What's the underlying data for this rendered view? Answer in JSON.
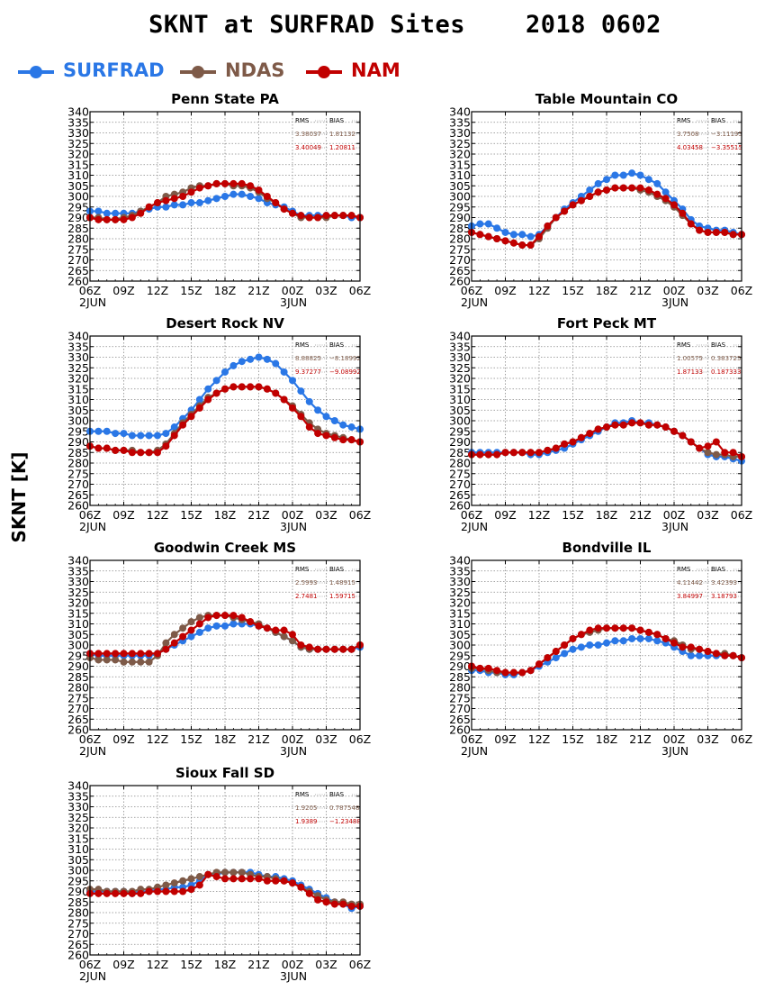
{
  "title": "SKNT at SURFRAD Sites    2018 0602",
  "ylabel": "SKNT [K]",
  "colors": {
    "SURFRAD": "#2a77e6",
    "NDAS": "#7e5a48",
    "NAM": "#c10000"
  },
  "legend": [
    {
      "name": "SURFRAD",
      "color": "#2a77e6"
    },
    {
      "name": "NDAS",
      "color": "#7e5a48"
    },
    {
      "name": "NAM",
      "color": "#c10000"
    }
  ],
  "chart_data": [
    {
      "type": "line",
      "title": "Penn State PA",
      "ylim": [
        260,
        340
      ],
      "yticks_step": 5,
      "grid": true,
      "x_tick_labels": [
        "06Z",
        "09Z",
        "12Z",
        "15Z",
        "18Z",
        "21Z",
        "00Z",
        "03Z",
        "06Z"
      ],
      "x_date_labels": [
        "2JUN",
        "3JUN"
      ],
      "stats": {
        "header": [
          "RMS",
          "BIAS"
        ],
        "NDAS": [
          "3.38037",
          "1.81132"
        ],
        "NAM": [
          "3.40049",
          "1.20811"
        ]
      },
      "series": [
        {
          "name": "SURFRAD",
          "values": [
            293,
            293,
            292,
            292,
            292,
            292,
            293,
            294,
            295,
            295,
            296,
            296,
            297,
            297,
            298,
            299,
            300,
            301,
            301,
            300,
            299,
            297,
            296,
            295,
            293,
            291,
            291,
            291,
            291,
            291,
            291,
            290,
            290
          ]
        },
        {
          "name": "NDAS",
          "values": [
            290,
            290,
            289,
            289,
            290,
            291,
            293,
            295,
            297,
            300,
            301,
            302,
            304,
            305,
            305,
            306,
            306,
            305,
            305,
            304,
            302,
            299,
            297,
            294,
            292,
            290,
            290,
            290,
            290,
            291,
            291,
            291,
            290
          ]
        },
        {
          "name": "NAM",
          "values": [
            290,
            289,
            289,
            289,
            289,
            290,
            292,
            295,
            297,
            298,
            299,
            300,
            302,
            304,
            305,
            306,
            306,
            306,
            306,
            305,
            303,
            300,
            297,
            294,
            292,
            291,
            290,
            290,
            291,
            291,
            291,
            291,
            290
          ]
        }
      ]
    },
    {
      "type": "line",
      "title": "Table Mountain CO",
      "ylim": [
        260,
        340
      ],
      "yticks_step": 5,
      "grid": true,
      "x_tick_labels": [
        "06Z",
        "09Z",
        "12Z",
        "15Z",
        "18Z",
        "21Z",
        "00Z",
        "03Z",
        "06Z"
      ],
      "x_date_labels": [
        "2JUN",
        "3JUN"
      ],
      "stats": {
        "header": [
          "RMS",
          "BIAS"
        ],
        "NDAS": [
          "3.7508",
          "−3.11195"
        ],
        "NAM": [
          "4.03458",
          "−3.35515"
        ]
      },
      "series": [
        {
          "name": "SURFRAD",
          "values": [
            286,
            287,
            287,
            285,
            283,
            282,
            282,
            281,
            282,
            286,
            290,
            294,
            297,
            300,
            303,
            306,
            308,
            310,
            310,
            311,
            310,
            308,
            306,
            302,
            298,
            294,
            289,
            286,
            285,
            284,
            284,
            283,
            282
          ]
        },
        {
          "name": "NDAS",
          "values": [
            283,
            282,
            281,
            280,
            279,
            278,
            277,
            277,
            280,
            285,
            290,
            293,
            296,
            298,
            300,
            302,
            303,
            304,
            304,
            304,
            303,
            302,
            300,
            298,
            295,
            291,
            287,
            284,
            283,
            283,
            283,
            282,
            282
          ]
        },
        {
          "name": "NAM",
          "values": [
            283,
            282,
            281,
            280,
            279,
            278,
            277,
            277,
            281,
            286,
            290,
            293,
            296,
            298,
            300,
            302,
            303,
            304,
            304,
            304,
            304,
            303,
            301,
            299,
            296,
            292,
            287,
            284,
            283,
            283,
            283,
            282,
            282
          ]
        }
      ]
    },
    {
      "type": "line",
      "title": "Desert Rock NV",
      "ylim": [
        260,
        340
      ],
      "yticks_step": 5,
      "grid": true,
      "x_tick_labels": [
        "06Z",
        "09Z",
        "12Z",
        "15Z",
        "18Z",
        "21Z",
        "00Z",
        "03Z",
        "06Z"
      ],
      "x_date_labels": [
        "2JUN",
        "3JUN"
      ],
      "stats": {
        "header": [
          "RMS",
          "BIAS"
        ],
        "NDAS": [
          "8.88825",
          "−8.18992"
        ],
        "NAM": [
          "9.37277",
          "−9.08992"
        ]
      },
      "series": [
        {
          "name": "SURFRAD",
          "values": [
            295,
            295,
            295,
            294,
            294,
            293,
            293,
            293,
            293,
            294,
            297,
            301,
            305,
            310,
            315,
            319,
            323,
            326,
            328,
            329,
            330,
            329,
            327,
            323,
            319,
            314,
            309,
            305,
            302,
            300,
            298,
            297,
            296
          ]
        },
        {
          "name": "NDAS",
          "values": [
            288,
            287,
            287,
            286,
            286,
            286,
            285,
            285,
            286,
            289,
            294,
            299,
            303,
            307,
            311,
            313,
            315,
            316,
            316,
            316,
            316,
            315,
            313,
            310,
            307,
            303,
            299,
            296,
            294,
            293,
            292,
            291,
            290
          ]
        },
        {
          "name": "NAM",
          "values": [
            288,
            287,
            287,
            286,
            286,
            285,
            285,
            285,
            285,
            288,
            293,
            298,
            302,
            306,
            310,
            313,
            315,
            316,
            316,
            316,
            316,
            315,
            313,
            310,
            306,
            302,
            297,
            294,
            293,
            292,
            291,
            291,
            290
          ]
        }
      ]
    },
    {
      "type": "line",
      "title": "Fort Peck MT",
      "ylim": [
        260,
        340
      ],
      "yticks_step": 5,
      "grid": true,
      "x_tick_labels": [
        "06Z",
        "09Z",
        "12Z",
        "15Z",
        "18Z",
        "21Z",
        "00Z",
        "03Z",
        "06Z"
      ],
      "x_date_labels": [
        "2JUN",
        "3JUN"
      ],
      "stats": {
        "header": [
          "RMS",
          "BIAS"
        ],
        "NDAS": [
          "1.00575",
          "0.383725"
        ],
        "NAM": [
          "1.87133",
          "0.187333"
        ]
      },
      "series": [
        {
          "name": "SURFRAD",
          "values": [
            285,
            285,
            285,
            285,
            285,
            285,
            285,
            284,
            284,
            285,
            286,
            287,
            289,
            291,
            293,
            295,
            297,
            299,
            299,
            300,
            299,
            299,
            298,
            297,
            295,
            293,
            290,
            287,
            284,
            283,
            283,
            282,
            281
          ]
        },
        {
          "name": "NDAS",
          "values": [
            284,
            284,
            284,
            284,
            285,
            285,
            285,
            285,
            285,
            286,
            287,
            289,
            290,
            292,
            294,
            296,
            297,
            298,
            298,
            299,
            299,
            298,
            298,
            297,
            295,
            293,
            290,
            287,
            285,
            284,
            284,
            283,
            283
          ]
        },
        {
          "name": "NAM",
          "values": [
            284,
            284,
            284,
            284,
            285,
            285,
            285,
            285,
            285,
            286,
            287,
            289,
            290,
            292,
            294,
            296,
            297,
            298,
            298,
            299,
            299,
            298,
            298,
            297,
            295,
            293,
            290,
            287,
            288,
            290,
            285,
            285,
            283
          ]
        }
      ]
    },
    {
      "type": "line",
      "title": "Goodwin Creek MS",
      "ylim": [
        260,
        340
      ],
      "yticks_step": 5,
      "grid": true,
      "x_tick_labels": [
        "06Z",
        "09Z",
        "12Z",
        "15Z",
        "18Z",
        "21Z",
        "00Z",
        "03Z",
        "06Z"
      ],
      "x_date_labels": [
        "2JUN",
        "3JUN"
      ],
      "stats": {
        "header": [
          "RMS",
          "BIAS"
        ],
        "NDAS": [
          "2.5993",
          "1.48915"
        ],
        "NAM": [
          "2.7481",
          "1.59715"
        ]
      },
      "series": [
        {
          "name": "SURFRAD",
          "values": [
            296,
            295,
            295,
            295,
            295,
            295,
            295,
            295,
            296,
            298,
            300,
            302,
            304,
            306,
            308,
            309,
            309,
            310,
            310,
            310,
            309,
            308,
            306,
            304,
            302,
            299,
            298,
            298,
            298,
            298,
            298,
            298,
            299
          ]
        },
        {
          "name": "NDAS",
          "values": [
            294,
            293,
            293,
            293,
            292,
            292,
            292,
            292,
            295,
            301,
            305,
            308,
            311,
            313,
            314,
            314,
            314,
            313,
            312,
            311,
            310,
            308,
            306,
            304,
            302,
            299,
            298,
            298,
            298,
            298,
            298,
            298,
            300
          ]
        },
        {
          "name": "NAM",
          "values": [
            296,
            296,
            296,
            296,
            296,
            296,
            296,
            296,
            296,
            298,
            301,
            304,
            307,
            310,
            313,
            314,
            314,
            314,
            313,
            311,
            309,
            308,
            307,
            307,
            305,
            300,
            299,
            298,
            298,
            298,
            298,
            298,
            300
          ]
        }
      ]
    },
    {
      "type": "line",
      "title": "Bondville IL",
      "ylim": [
        260,
        340
      ],
      "yticks_step": 5,
      "grid": true,
      "x_tick_labels": [
        "06Z",
        "09Z",
        "12Z",
        "15Z",
        "18Z",
        "21Z",
        "00Z",
        "03Z",
        "06Z"
      ],
      "x_date_labels": [
        "2JUN",
        "3JUN"
      ],
      "stats": {
        "header": [
          "RMS",
          "BIAS"
        ],
        "NDAS": [
          "4.11442",
          "3.42393"
        ],
        "NAM": [
          "3.84997",
          "3.18793"
        ]
      },
      "series": [
        {
          "name": "SURFRAD",
          "values": [
            288,
            288,
            287,
            287,
            286,
            286,
            287,
            288,
            290,
            292,
            294,
            296,
            298,
            299,
            300,
            300,
            301,
            302,
            302,
            303,
            303,
            303,
            302,
            301,
            299,
            297,
            295,
            295,
            295,
            295,
            295,
            295,
            294
          ]
        },
        {
          "name": "NDAS",
          "values": [
            289,
            289,
            288,
            287,
            287,
            287,
            287,
            288,
            291,
            294,
            297,
            300,
            303,
            305,
            306,
            307,
            308,
            308,
            308,
            308,
            307,
            306,
            305,
            303,
            302,
            300,
            298,
            298,
            297,
            296,
            296,
            295,
            294
          ]
        },
        {
          "name": "NAM",
          "values": [
            290,
            289,
            289,
            288,
            287,
            287,
            287,
            288,
            291,
            294,
            297,
            300,
            303,
            305,
            307,
            308,
            308,
            308,
            308,
            308,
            307,
            306,
            305,
            303,
            301,
            299,
            299,
            298,
            297,
            296,
            295,
            295,
            294
          ]
        }
      ]
    },
    {
      "type": "line",
      "title": "Sioux Fall SD",
      "ylim": [
        260,
        340
      ],
      "yticks_step": 5,
      "grid": true,
      "x_tick_labels": [
        "06Z",
        "09Z",
        "12Z",
        "15Z",
        "18Z",
        "21Z",
        "00Z",
        "03Z",
        "06Z"
      ],
      "x_date_labels": [
        "2JUN",
        "3JUN"
      ],
      "stats": {
        "header": [
          "RMS",
          "BIAS"
        ],
        "NDAS": [
          "1.9205",
          "0.787548"
        ],
        "NAM": [
          "1.9389",
          "−1.23488"
        ]
      },
      "series": [
        {
          "name": "SURFRAD",
          "values": [
            290,
            290,
            290,
            290,
            290,
            289,
            290,
            290,
            291,
            291,
            292,
            292,
            293,
            295,
            298,
            298,
            299,
            299,
            299,
            299,
            298,
            297,
            297,
            296,
            295,
            293,
            291,
            289,
            287,
            285,
            284,
            282,
            283
          ]
        },
        {
          "name": "NDAS",
          "values": [
            291,
            291,
            290,
            290,
            290,
            290,
            291,
            291,
            292,
            293,
            294,
            295,
            296,
            297,
            298,
            299,
            299,
            299,
            299,
            298,
            297,
            297,
            296,
            295,
            294,
            292,
            290,
            288,
            286,
            285,
            285,
            284,
            284
          ]
        },
        {
          "name": "NAM",
          "values": [
            289,
            289,
            289,
            289,
            289,
            289,
            289,
            290,
            290,
            290,
            290,
            290,
            291,
            293,
            298,
            297,
            296,
            296,
            296,
            296,
            296,
            295,
            295,
            295,
            294,
            292,
            289,
            286,
            285,
            284,
            284,
            283,
            283
          ]
        }
      ]
    }
  ]
}
